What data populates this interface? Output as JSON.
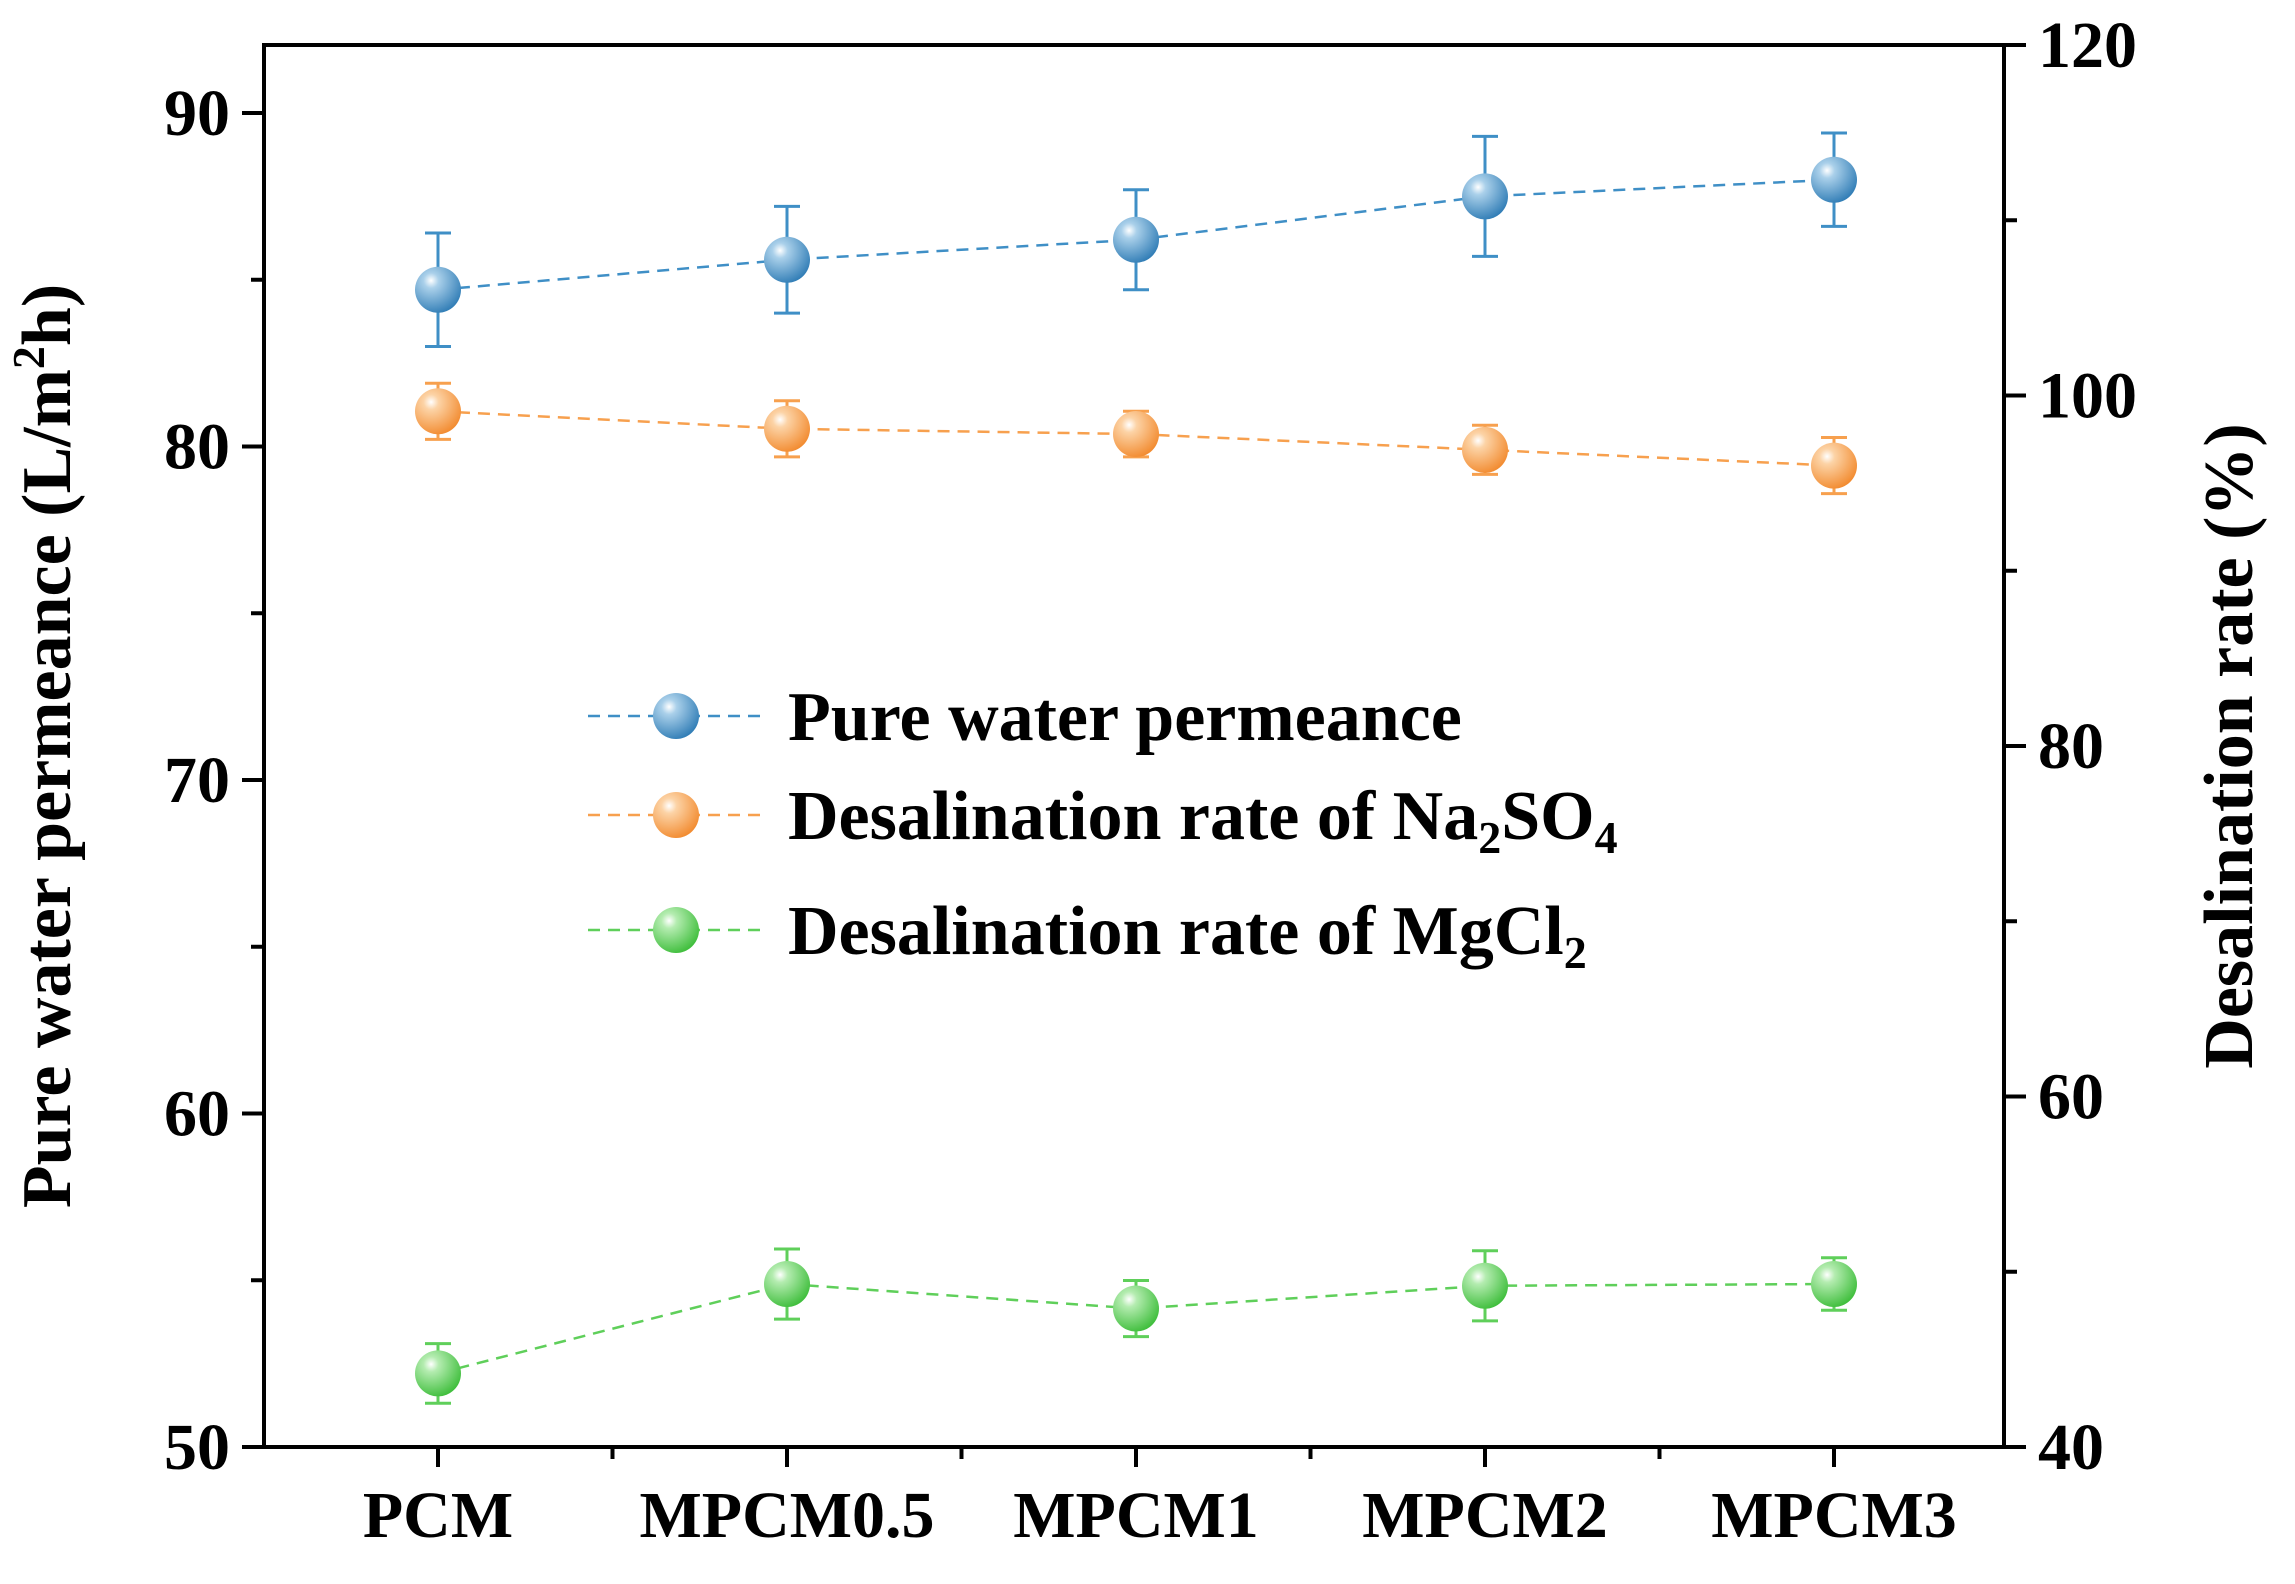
{
  "chart_data": {
    "type": "line",
    "categories": [
      "PCM",
      "MPCM0.5",
      "MPCM1",
      "MPCM2",
      "MPCM3"
    ],
    "left_axis": {
      "label_main": "Pure water permeance (L/m",
      "label_sup": "2",
      "label_end": "h)",
      "ylim": [
        50,
        90
      ],
      "major_ticks": [
        50,
        60,
        70,
        80,
        90
      ],
      "tick_labels": [
        "50",
        "60",
        "70",
        "80",
        "90"
      ]
    },
    "right_axis": {
      "label": "Desalination rate (%)",
      "ylim": [
        40,
        120
      ],
      "major_ticks": [
        40,
        60,
        80,
        100,
        120
      ],
      "tick_labels": [
        "40",
        "60",
        "80",
        "100",
        "120"
      ]
    },
    "series": [
      {
        "name": "Pure water permeance",
        "legend_main": "Pure water permeance",
        "legend_sub": "",
        "legend_tail": "",
        "axis": "left",
        "color": "#3f8fc6",
        "values": [
          84.7,
          85.6,
          86.2,
          87.5,
          88.0
        ],
        "errors": [
          1.7,
          1.6,
          1.5,
          1.8,
          1.4
        ]
      },
      {
        "name": "Desalination rate of Na2SO4",
        "legend_main": "Desalination rate of Na",
        "legend_sub": "2",
        "legend_tail": "SO",
        "legend_sub2": "4",
        "axis": "right",
        "color": "#f7a04e",
        "values": [
          99.1,
          98.1,
          97.8,
          96.9,
          96.0
        ],
        "errors": [
          1.6,
          1.6,
          1.3,
          1.4,
          1.6
        ]
      },
      {
        "name": "Desalination rate of MgCl2",
        "legend_main": "Desalination rate of MgCl",
        "legend_sub": "2",
        "legend_tail": "",
        "axis": "right",
        "color": "#5fcf5a",
        "values": [
          44.2,
          49.3,
          47.9,
          49.2,
          49.3
        ],
        "errors": [
          1.7,
          2.0,
          1.6,
          2.0,
          1.5
        ]
      }
    ]
  }
}
